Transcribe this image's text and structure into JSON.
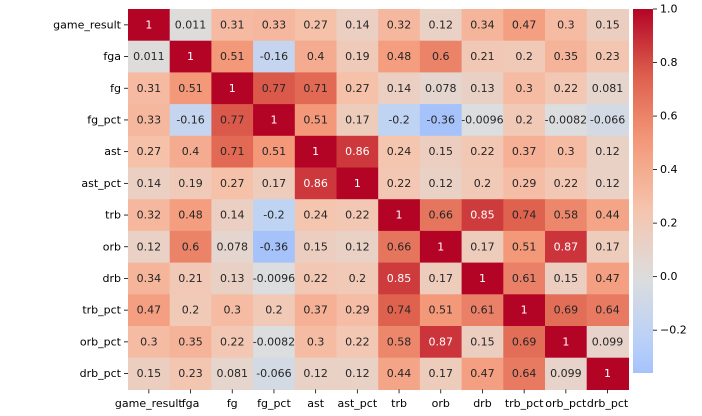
{
  "chart_data": {
    "type": "heatmap",
    "title": "",
    "xlabel": "",
    "ylabel": "",
    "x_labels": [
      "game_result",
      "fga",
      "fg",
      "fg_pct",
      "ast",
      "ast_pct",
      "trb",
      "orb",
      "drb",
      "trb_pct",
      "orb_pct",
      "drb_pct"
    ],
    "y_labels": [
      "game_result",
      "fga",
      "fg",
      "fg_pct",
      "ast",
      "ast_pct",
      "trb",
      "orb",
      "drb",
      "trb_pct",
      "orb_pct",
      "drb_pct"
    ],
    "values": [
      [
        1,
        0.011,
        0.31,
        0.33,
        0.27,
        0.14,
        0.32,
        0.12,
        0.34,
        0.47,
        0.3,
        0.15
      ],
      [
        0.011,
        1,
        0.51,
        -0.16,
        0.4,
        0.19,
        0.48,
        0.6,
        0.21,
        0.2,
        0.35,
        0.23
      ],
      [
        0.31,
        0.51,
        1,
        0.77,
        0.71,
        0.27,
        0.14,
        0.078,
        0.13,
        0.3,
        0.22,
        0.081
      ],
      [
        0.33,
        -0.16,
        0.77,
        1,
        0.51,
        0.17,
        -0.2,
        -0.36,
        -0.0096,
        0.2,
        -0.0082,
        -0.066
      ],
      [
        0.27,
        0.4,
        0.71,
        0.51,
        1,
        0.86,
        0.24,
        0.15,
        0.22,
        0.37,
        0.3,
        0.12
      ],
      [
        0.14,
        0.19,
        0.27,
        0.17,
        0.86,
        1,
        0.22,
        0.12,
        0.2,
        0.29,
        0.22,
        0.12
      ],
      [
        0.32,
        0.48,
        0.14,
        -0.2,
        0.24,
        0.22,
        1,
        0.66,
        0.85,
        0.74,
        0.58,
        0.44
      ],
      [
        0.12,
        0.6,
        0.078,
        -0.36,
        0.15,
        0.12,
        0.66,
        1,
        0.17,
        0.51,
        0.87,
        0.17
      ],
      [
        0.34,
        0.21,
        0.13,
        -0.0096,
        0.22,
        0.2,
        0.85,
        0.17,
        1,
        0.61,
        0.15,
        0.47
      ],
      [
        0.47,
        0.2,
        0.3,
        0.2,
        0.37,
        0.29,
        0.74,
        0.51,
        0.61,
        1,
        0.69,
        0.64
      ],
      [
        0.3,
        0.35,
        0.22,
        -0.0082,
        0.3,
        0.22,
        0.58,
        0.87,
        0.15,
        0.69,
        1,
        0.099
      ],
      [
        0.15,
        0.23,
        0.081,
        -0.066,
        0.12,
        0.12,
        0.44,
        0.17,
        0.47,
        0.64,
        0.099,
        1
      ]
    ],
    "cell_labels": [
      [
        "1",
        "0.011",
        "0.31",
        "0.33",
        "0.27",
        "0.14",
        "0.32",
        "0.12",
        "0.34",
        "0.47",
        "0.3",
        "0.15"
      ],
      [
        "0.011",
        "1",
        "0.51",
        "-0.16",
        "0.4",
        "0.19",
        "0.48",
        "0.6",
        "0.21",
        "0.2",
        "0.35",
        "0.23"
      ],
      [
        "0.31",
        "0.51",
        "1",
        "0.77",
        "0.71",
        "0.27",
        "0.14",
        "0.078",
        "0.13",
        "0.3",
        "0.22",
        "0.081"
      ],
      [
        "0.33",
        "-0.16",
        "0.77",
        "1",
        "0.51",
        "0.17",
        "-0.2",
        "-0.36",
        "-0.0096",
        "0.2",
        "-0.0082",
        "-0.066"
      ],
      [
        "0.27",
        "0.4",
        "0.71",
        "0.51",
        "1",
        "0.86",
        "0.24",
        "0.15",
        "0.22",
        "0.37",
        "0.3",
        "0.12"
      ],
      [
        "0.14",
        "0.19",
        "0.27",
        "0.17",
        "0.86",
        "1",
        "0.22",
        "0.12",
        "0.2",
        "0.29",
        "0.22",
        "0.12"
      ],
      [
        "0.32",
        "0.48",
        "0.14",
        "-0.2",
        "0.24",
        "0.22",
        "1",
        "0.66",
        "0.85",
        "0.74",
        "0.58",
        "0.44"
      ],
      [
        "0.12",
        "0.6",
        "0.078",
        "-0.36",
        "0.15",
        "0.12",
        "0.66",
        "1",
        "0.17",
        "0.51",
        "0.87",
        "0.17"
      ],
      [
        "0.34",
        "0.21",
        "0.13",
        "-0.0096",
        "0.22",
        "0.2",
        "0.85",
        "0.17",
        "1",
        "0.61",
        "0.15",
        "0.47"
      ],
      [
        "0.47",
        "0.2",
        "0.3",
        "0.2",
        "0.37",
        "0.29",
        "0.74",
        "0.51",
        "0.61",
        "1",
        "0.69",
        "0.64"
      ],
      [
        "0.3",
        "0.35",
        "0.22",
        "-0.0082",
        "0.3",
        "0.22",
        "0.58",
        "0.87",
        "0.15",
        "0.69",
        "1",
        "0.099"
      ],
      [
        "0.15",
        "0.23",
        "0.081",
        "-0.066",
        "0.12",
        "0.12",
        "0.44",
        "0.17",
        "0.47",
        "0.64",
        "0.099",
        "1"
      ]
    ],
    "colormap": "coolwarm",
    "center": 0,
    "vmin": -0.36,
    "vmax": 1,
    "colorbar_ticks": [
      {
        "value": 1.0,
        "label": "1.0"
      },
      {
        "value": 0.8,
        "label": "0.8"
      },
      {
        "value": 0.6,
        "label": "0.6"
      },
      {
        "value": 0.4,
        "label": "0.4"
      },
      {
        "value": 0.2,
        "label": "0.2"
      },
      {
        "value": 0.0,
        "label": "0.0"
      },
      {
        "value": -0.2,
        "label": "−0.2"
      }
    ],
    "colorbar_placement": "right",
    "grid": false
  }
}
